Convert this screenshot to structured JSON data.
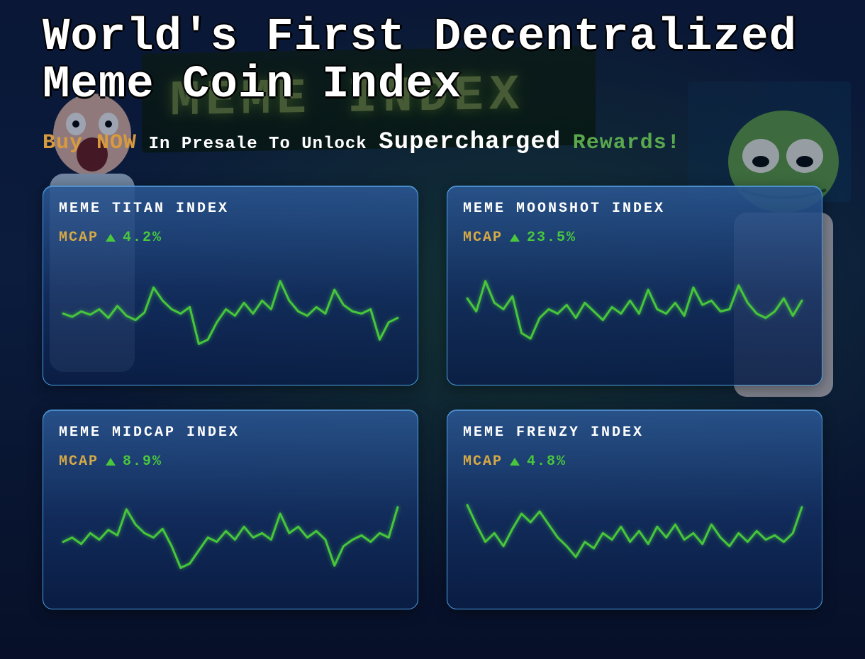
{
  "colors": {
    "page_bg": "#0a1530",
    "card_border": "#4aa3e8",
    "card_bg_top": "rgba(42,86,145,0.9)",
    "card_bg_bottom": "rgba(10,30,70,0.88)",
    "title_color": "#ffffff",
    "sub_orange": "#d79a3e",
    "sub_white": "#ffffff",
    "sub_green": "#5aa84e",
    "mcap_label": "#d7a946",
    "spark_line": "#47c63a",
    "spark_line_width": 3,
    "up_triangle": "#49c83c"
  },
  "title_line1": "World's First Decentralized",
  "title_line2": "Meme Coin Index",
  "subtitle": {
    "part1": "Buy NOW",
    "part2": "In Presale To Unlock",
    "part3": "Supercharged",
    "part4": "Rewards!"
  },
  "bg_sign_text": "MEME INDEX",
  "mcap_label": "MCAP",
  "spark_domain": {
    "x_min": 0,
    "x_max": 100,
    "y_min": 0,
    "y_max": 100
  },
  "cards": [
    {
      "title": "MEME TITAN INDEX",
      "pct": "4.2%",
      "direction": "up",
      "series": [
        48,
        45,
        50,
        47,
        52,
        44,
        55,
        46,
        42,
        49,
        72,
        60,
        52,
        48,
        54,
        20,
        24,
        40,
        52,
        46,
        58,
        48,
        60,
        52,
        78,
        60,
        50,
        46,
        54,
        48,
        70,
        56,
        50,
        48,
        52,
        24,
        40,
        44
      ]
    },
    {
      "title": "MEME MOONSHOT INDEX",
      "pct": "23.5%",
      "direction": "up",
      "series": [
        62,
        50,
        78,
        58,
        52,
        64,
        30,
        25,
        44,
        52,
        48,
        56,
        44,
        58,
        50,
        42,
        54,
        48,
        60,
        48,
        70,
        52,
        48,
        58,
        46,
        72,
        56,
        60,
        50,
        52,
        74,
        58,
        48,
        44,
        50,
        62,
        46,
        60
      ]
    },
    {
      "title": "MEME MIDCAP INDEX",
      "pct": "8.9%",
      "direction": "up",
      "series": [
        44,
        48,
        42,
        52,
        46,
        55,
        50,
        74,
        60,
        52,
        48,
        56,
        40,
        20,
        24,
        36,
        48,
        44,
        54,
        46,
        58,
        48,
        52,
        46,
        70,
        52,
        58,
        48,
        54,
        46,
        22,
        40,
        46,
        50,
        44,
        52,
        48,
        76
      ]
    },
    {
      "title": "MEME FRENZY INDEX",
      "pct": "4.8%",
      "direction": "up",
      "series": [
        78,
        60,
        44,
        52,
        40,
        56,
        70,
        62,
        72,
        60,
        48,
        40,
        30,
        44,
        38,
        52,
        46,
        58,
        44,
        54,
        42,
        58,
        48,
        60,
        46,
        52,
        42,
        60,
        48,
        40,
        52,
        44,
        54,
        46,
        50,
        44,
        52,
        76
      ]
    }
  ]
}
